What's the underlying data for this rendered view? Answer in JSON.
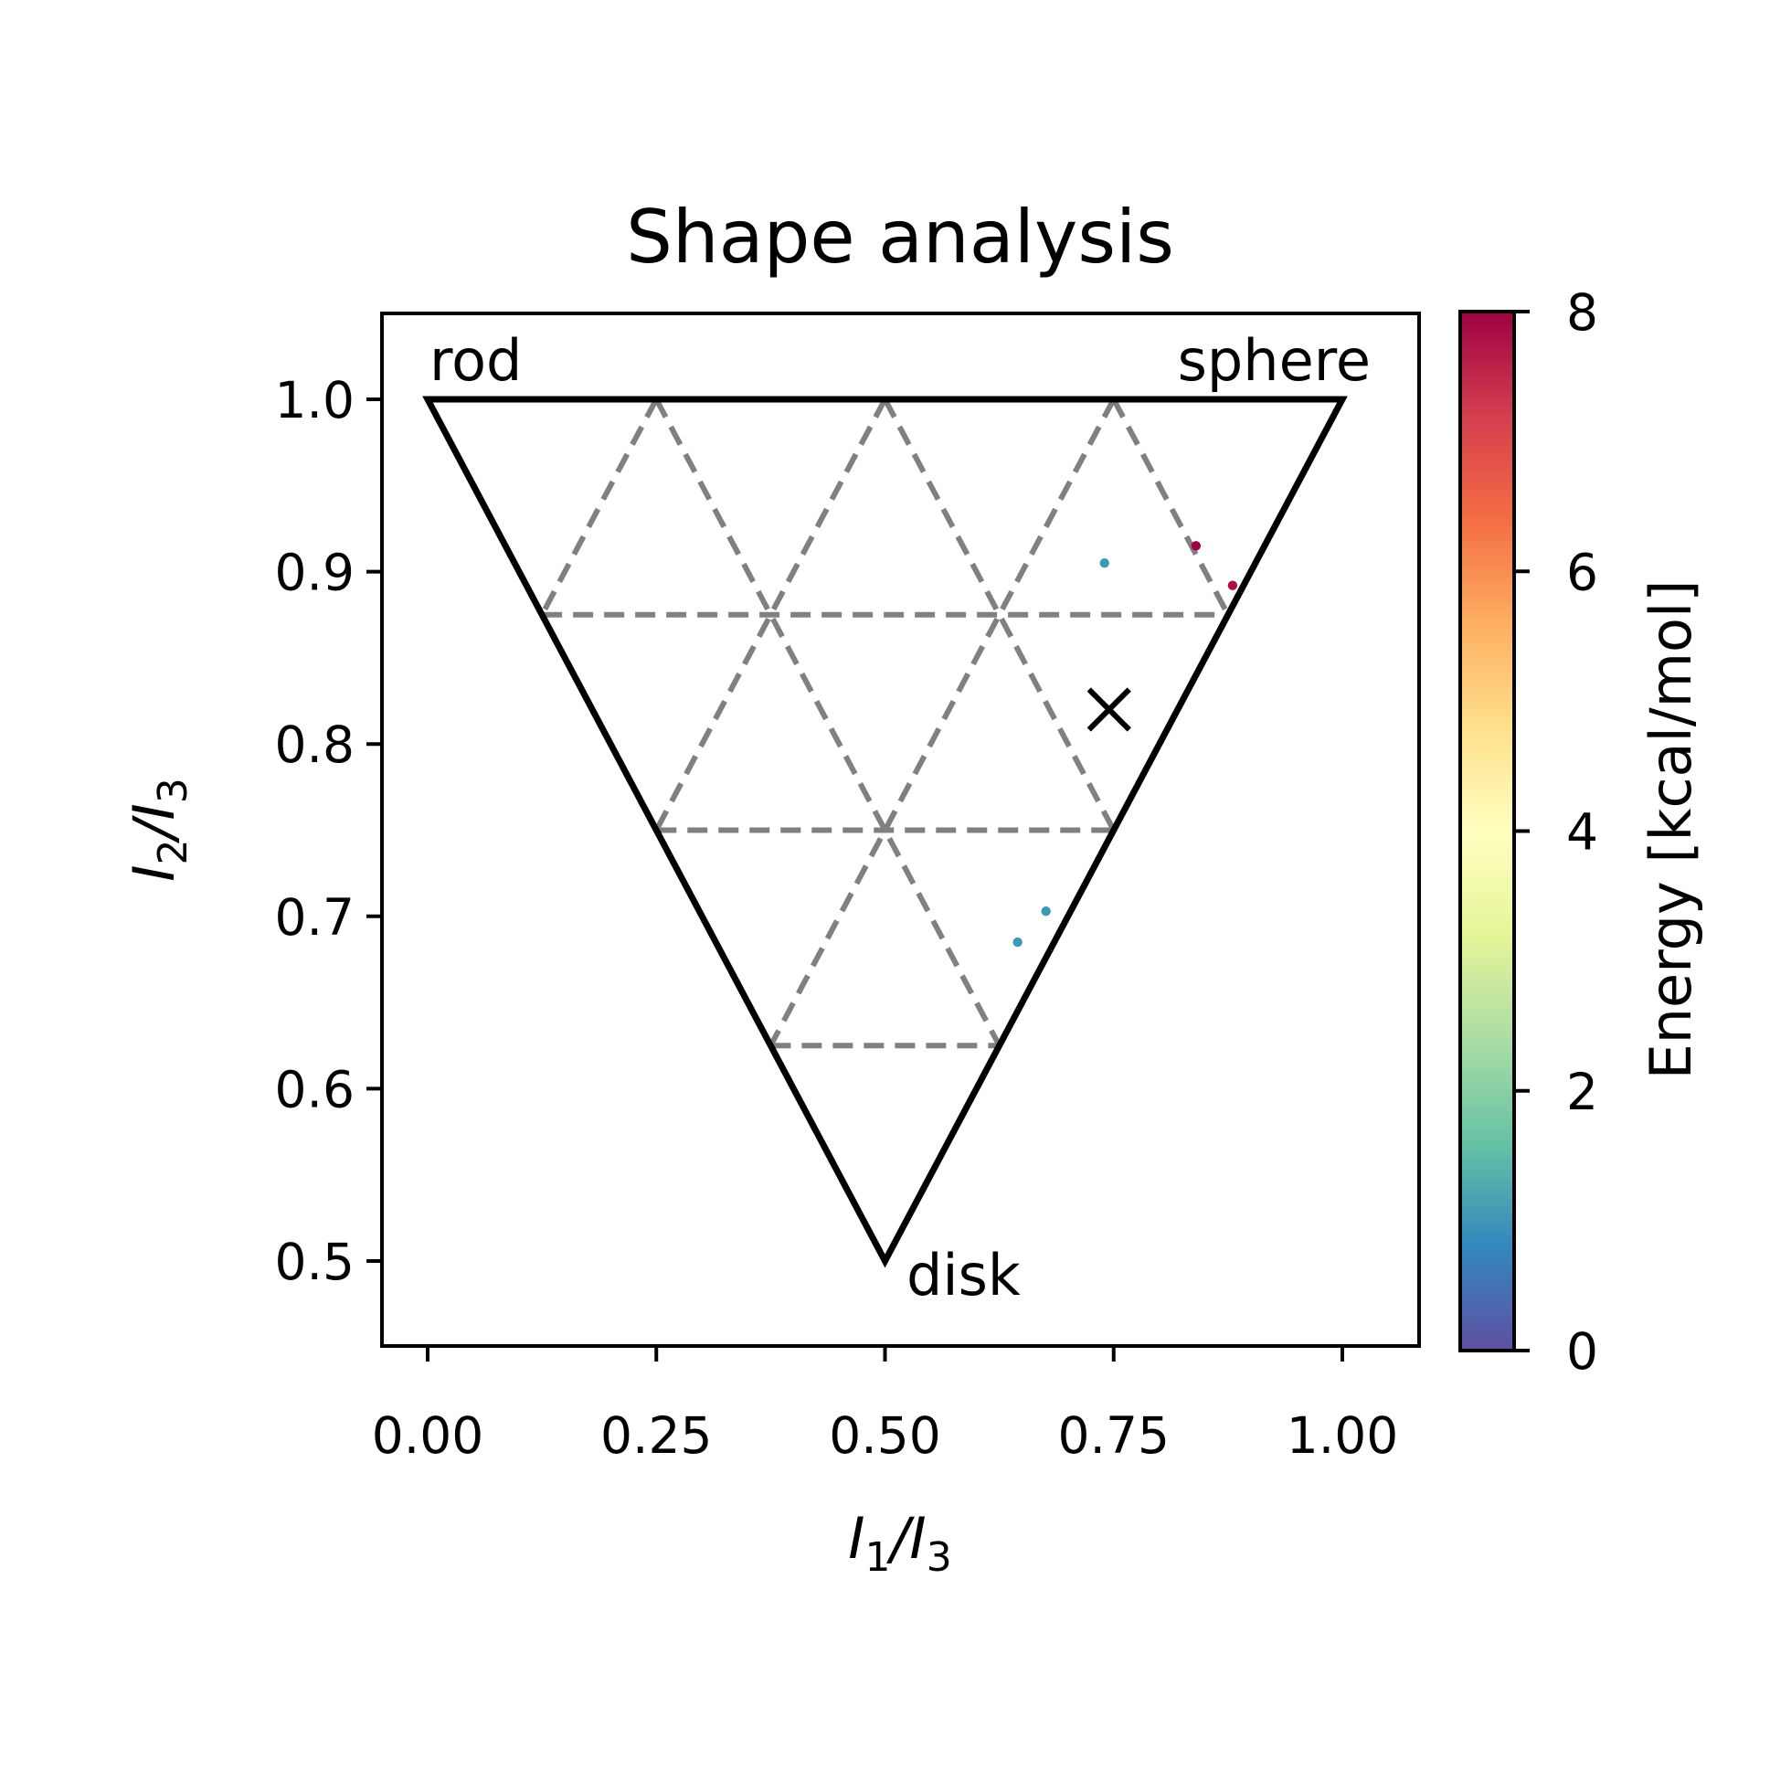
{
  "chart_data": {
    "type": "scatter",
    "title": "Shape analysis",
    "xlabel": {
      "main": "I",
      "sub1": "1",
      "sep": "/I",
      "sub2": "3"
    },
    "ylabel": {
      "main": "I",
      "sub1": "2",
      "sep": "/I",
      "sub2": "3"
    },
    "xlim": [
      -0.05,
      1.08
    ],
    "ylim": [
      0.45,
      1.05
    ],
    "x_ticks": [
      "0.00",
      "0.25",
      "0.50",
      "0.75",
      "1.00"
    ],
    "y_ticks": [
      "0.5",
      "0.6",
      "0.7",
      "0.8",
      "0.9",
      "1.0"
    ],
    "grid": false,
    "corner_labels": {
      "rod": "rod",
      "sphere": "sphere",
      "disk": "disk"
    },
    "triangle_vertices": [
      [
        0,
        1
      ],
      [
        1,
        1
      ],
      [
        0.5,
        0.5
      ]
    ],
    "mean_marker": [
      0.745,
      0.82
    ],
    "colorbar": {
      "label": "Energy [kcal/mol]",
      "range": [
        0,
        8
      ],
      "ticks": [
        "0",
        "2",
        "4",
        "6",
        "8"
      ],
      "colormap": "Spectral_r"
    },
    "scatter_cluster": {
      "center": [
        0.74,
        0.825
      ],
      "x_range": [
        0.6,
        0.88
      ],
      "y_range": [
        0.68,
        0.91
      ],
      "energy_range": [
        0.0,
        1.3
      ],
      "outliers": [
        {
          "x": 0.84,
          "y": 0.915,
          "energy": 8.0
        },
        {
          "x": 0.88,
          "y": 0.892,
          "energy": 7.8
        },
        {
          "x": 0.645,
          "y": 0.685,
          "energy": 1.0
        },
        {
          "x": 0.676,
          "y": 0.703,
          "energy": 1.0
        },
        {
          "x": 0.74,
          "y": 0.905,
          "energy": 1.0
        }
      ]
    }
  }
}
